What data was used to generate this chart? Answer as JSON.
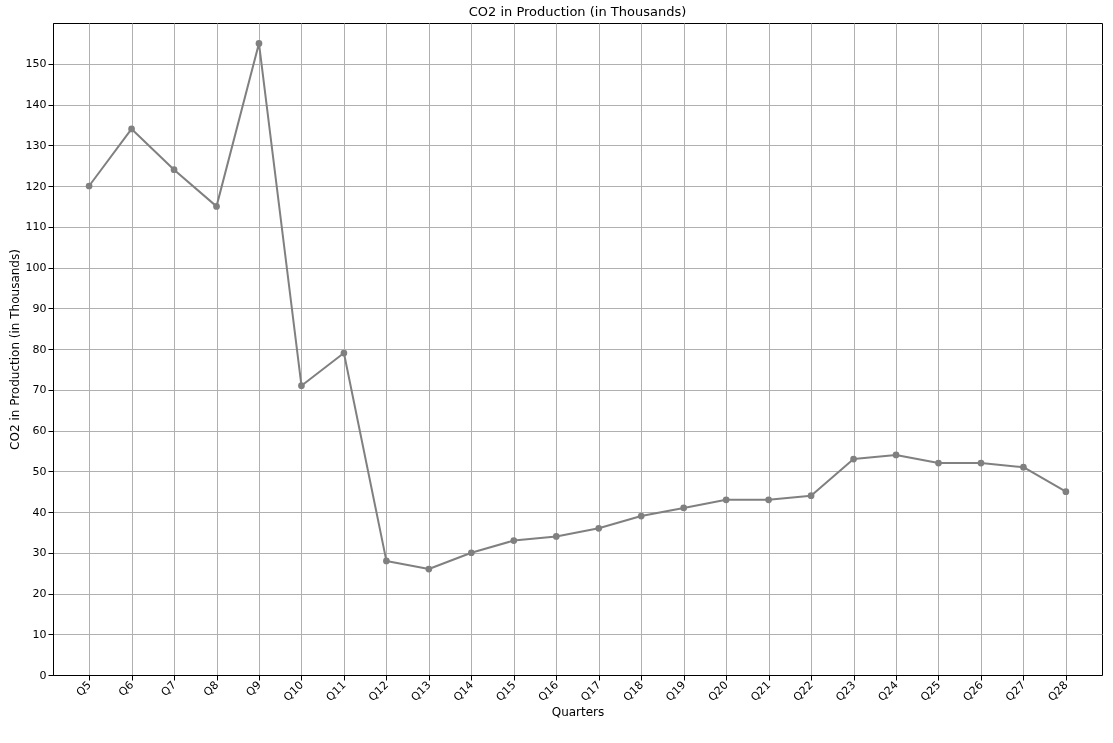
{
  "chart_data": {
    "type": "line",
    "title": "CO2 in Production (in Thousands)",
    "xlabel": "Quarters",
    "ylabel": "CO2 in Production (in Thousands)",
    "categories": [
      "Q5",
      "Q6",
      "Q7",
      "Q8",
      "Q9",
      "Q10",
      "Q11",
      "Q12",
      "Q13",
      "Q14",
      "Q15",
      "Q16",
      "Q17",
      "Q18",
      "Q19",
      "Q20",
      "Q21",
      "Q22",
      "Q23",
      "Q24",
      "Q25",
      "Q26",
      "Q27",
      "Q28"
    ],
    "series": [
      {
        "color": "#808080",
        "values": [
          120,
          134,
          124,
          115,
          155,
          71,
          79,
          28,
          26,
          30,
          33,
          34,
          36,
          39,
          41,
          43,
          43,
          44,
          53,
          54,
          52,
          52,
          51,
          45
        ]
      }
    ],
    "ylim": [
      0,
      160
    ],
    "yticks": [
      0,
      10,
      20,
      30,
      40,
      50,
      60,
      70,
      80,
      90,
      100,
      110,
      120,
      130,
      140,
      150
    ],
    "grid": true,
    "marker": "circle",
    "line_style": "solid",
    "legend": false
  }
}
